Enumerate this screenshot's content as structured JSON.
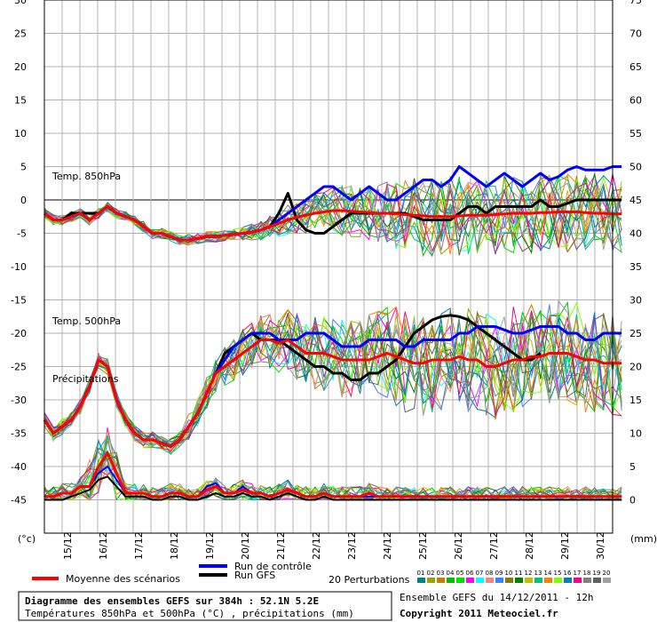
{
  "chart_data": {
    "type": "line",
    "title": "Diagramme des ensembles GEFS sur 384h : 52.1N 5.2E",
    "subtitle": "Températures 850hPa et 500hPa (°C) , précipitations (mm)",
    "ensemble_info": "Ensemble GEFS du 14/12/2011 - 12h",
    "copyright": "Copyright 2011 Meteociel.fr",
    "ylabel_left": "(°c)",
    "ylabel_right": "(mm)",
    "ylim_left": [
      -50,
      30
    ],
    "left_ticks": [
      "30",
      "25",
      "20",
      "15",
      "10",
      "5",
      "0",
      "-5",
      "-10",
      "-15",
      "-20",
      "-25",
      "-30",
      "-35",
      "-40",
      "-45"
    ],
    "right_ticks": [
      "75",
      "70",
      "65",
      "60",
      "55",
      "50",
      "45",
      "40",
      "35",
      "30",
      "25",
      "20",
      "15",
      "10",
      "5",
      "0"
    ],
    "x_ticks": [
      "15/12",
      "16/12",
      "17/12",
      "18/12",
      "19/12",
      "20/12",
      "21/12",
      "22/12",
      "23/12",
      "24/12",
      "25/12",
      "26/12",
      "27/12",
      "28/12",
      "29/12",
      "30/12"
    ],
    "annotations": {
      "t850": "Temp. 850hPa",
      "t500": "Temp. 500hPa",
      "precip": "Précipitations"
    },
    "legend": {
      "mean": "Moyenne des scénarios",
      "control": "Run de contrôle",
      "gfs": "Run GFS",
      "perturbations": "20 Perturbations",
      "perturbation_ids": [
        "01",
        "02",
        "03",
        "04",
        "05",
        "06",
        "07",
        "08",
        "09",
        "10",
        "11",
        "12",
        "13",
        "14",
        "15",
        "16",
        "17",
        "18",
        "19",
        "20"
      ]
    },
    "colors": {
      "mean": "#ff0000",
      "control": "#0000ff",
      "gfs": "#000000",
      "perturbations": [
        "#008080",
        "#a0a000",
        "#c08000",
        "#00c000",
        "#00e000",
        "#ff00ff",
        "#00ffff",
        "#ff8080",
        "#4080ff",
        "#808000",
        "#008000",
        "#c0c000",
        "#00c080",
        "#ff8000",
        "#80ff00",
        "#0080c0",
        "#ff0080",
        "#808080",
        "#606060",
        "#a0a0a0"
      ]
    },
    "series": [
      {
        "name": "T850 Moyenne",
        "values": [
          -2,
          -3,
          -3,
          -2.5,
          -2,
          -3,
          -2,
          -1,
          -2,
          -2.5,
          -3,
          -4,
          -5,
          -5,
          -5.5,
          -6,
          -6,
          -5.8,
          -5.5,
          -5.5,
          -5.3,
          -5.2,
          -5,
          -4.8,
          -4.5,
          -4,
          -3.5,
          -3,
          -2.6,
          -2.3,
          -2,
          -1.8,
          -1.6,
          -1.6,
          -1.7,
          -1.8,
          -1.9,
          -2,
          -2,
          -2.1,
          -2.2,
          -2.3,
          -2.4,
          -2.5,
          -2.5,
          -2.5,
          -2.4,
          -2.3,
          -2.3,
          -2.3,
          -2.2,
          -2.1,
          -2,
          -2,
          -2,
          -1.9,
          -1.9,
          -1.8,
          -1.8,
          -1.8,
          -1.9,
          -2,
          -2,
          -2.1,
          -2.1
        ]
      },
      {
        "name": "T850 Contrôle",
        "values": [
          -2,
          -3,
          -3,
          -2.5,
          -2,
          -3,
          -2,
          -1,
          -2,
          -2.5,
          -3,
          -4,
          -5,
          -5,
          -5.5,
          -6,
          -6,
          -5.8,
          -5.5,
          -5.5,
          -5.3,
          -5.2,
          -5,
          -4.8,
          -4.5,
          -4,
          -3,
          -2,
          -1,
          0,
          1,
          2,
          2,
          1,
          0,
          1,
          2,
          1,
          0,
          0,
          1,
          2,
          3,
          3,
          2,
          3,
          5,
          4,
          3,
          2,
          3,
          4,
          3,
          2,
          3,
          4,
          3,
          3.5,
          4.5,
          5,
          4.5,
          4.5,
          4.5,
          5,
          5
        ]
      },
      {
        "name": "T850 GFS",
        "values": [
          -2,
          -3,
          -3,
          -2,
          -2,
          -2,
          -2,
          -1,
          -2,
          -2.5,
          -3,
          -4,
          -5,
          -5,
          -5.5,
          -6,
          -6,
          -5.8,
          -5.5,
          -5.5,
          -5.3,
          -5.2,
          -5,
          -4.8,
          -4.5,
          -4,
          -2,
          1,
          -3,
          -4.5,
          -5,
          -5,
          -4,
          -3,
          -2,
          -2,
          -2,
          -2,
          -2,
          -2,
          -2,
          -2.5,
          -3,
          -3,
          -3,
          -3,
          -2,
          -1,
          -1,
          -2,
          -1,
          -1,
          -1,
          -1,
          -1,
          0,
          -1,
          -1,
          -0.5,
          0,
          0,
          0,
          0,
          0,
          0
        ]
      },
      {
        "name": "T500 Moyenne",
        "values": [
          -33,
          -35,
          -34,
          -33,
          -31,
          -28,
          -24,
          -25,
          -30,
          -33,
          -35,
          -36,
          -36,
          -36.5,
          -37,
          -36,
          -34,
          -32,
          -29,
          -26,
          -25,
          -24,
          -23,
          -22,
          -21,
          -21,
          -21.5,
          -21,
          -22,
          -23,
          -23,
          -23,
          -23.5,
          -24,
          -24,
          -24,
          -24,
          -23.5,
          -23,
          -23.5,
          -24,
          -24.5,
          -24.5,
          -24,
          -24,
          -24,
          -23.5,
          -24,
          -24,
          -25,
          -25,
          -24.5,
          -24,
          -24,
          -23.5,
          -23.5,
          -23,
          -23,
          -23,
          -23.5,
          -24,
          -24,
          -24.5,
          -24.5,
          -24.5
        ]
      },
      {
        "name": "T500 Contrôle",
        "values": [
          -33,
          -35,
          -34,
          -33,
          -31,
          -28,
          -24,
          -25,
          -30,
          -33,
          -35,
          -36,
          -36,
          -36.5,
          -37,
          -36,
          -34,
          -32,
          -29,
          -26,
          -24,
          -22,
          -21,
          -20,
          -20,
          -20,
          -21,
          -21,
          -21,
          -20,
          -20,
          -20,
          -21,
          -22,
          -22,
          -22,
          -21,
          -21,
          -21,
          -21,
          -22,
          -22,
          -21,
          -21,
          -21,
          -21,
          -20,
          -20,
          -19,
          -19,
          -19,
          -19.5,
          -20,
          -20,
          -19.5,
          -19,
          -19,
          -19,
          -20,
          -20,
          -21,
          -21,
          -20,
          -20,
          -20
        ]
      },
      {
        "name": "T500 GFS",
        "values": [
          -33,
          -35,
          -34,
          -33,
          -31,
          -28,
          -24,
          -25,
          -30,
          -33,
          -35,
          -36,
          -36,
          -36.5,
          -37,
          -36,
          -34,
          -32,
          -29,
          -26,
          -23,
          -22,
          -21,
          -20,
          -21,
          -21,
          -21,
          -22,
          -23,
          -24,
          -25,
          -25,
          -26,
          -26,
          -27,
          -27,
          -26,
          -26,
          -25,
          -24,
          -22,
          -20,
          -19,
          -18,
          -17.5,
          -17.3,
          -17.5,
          -18,
          -19,
          -20,
          -21,
          -22,
          -23,
          -24,
          -24,
          -23
        ]
      },
      {
        "name": "Précipitations Moyenne (mm)",
        "values": [
          0.5,
          0.5,
          1,
          1,
          2,
          2,
          5,
          7,
          4,
          1,
          1,
          1,
          0.5,
          0.5,
          1,
          1,
          0.5,
          0.5,
          1.5,
          2,
          1,
          1,
          1.5,
          1,
          1,
          0.5,
          1,
          1.5,
          1,
          0.5,
          0.5,
          1,
          0.5,
          0.5,
          0.5,
          0.5,
          1,
          0.5,
          0.5,
          0.5,
          0.5,
          0.5,
          0.5,
          0.5,
          0.5,
          0.5,
          0.5,
          0.5,
          0.5,
          0.5,
          0.5,
          0.5,
          0.5,
          0.5,
          0.5,
          0.5,
          0.5,
          0.5,
          0.5,
          0.5,
          0.5,
          0.5,
          0.5,
          0.5,
          0.5
        ]
      },
      {
        "name": "Précipitations Contrôle (mm)",
        "values": [
          0.5,
          0.5,
          1,
          1,
          2,
          2,
          4,
          5,
          3,
          1,
          1,
          1,
          0.5,
          0.5,
          1,
          1,
          0.5,
          0.5,
          2,
          2.5,
          1,
          1,
          2,
          1,
          1,
          0.5,
          1,
          1.5,
          1,
          0.5,
          0.5,
          1,
          0.5,
          0.5,
          0.5,
          0.5,
          0.5,
          0.5,
          0.5,
          0.5,
          0.5,
          0.5,
          0.5,
          0.5,
          0.5,
          0.5,
          0.5,
          0.5,
          0.5,
          0.5,
          0.5,
          0.5,
          0.5,
          0.5,
          0.5,
          0.5,
          0.5,
          0.5,
          0.5,
          0.5,
          0.5,
          0.5,
          0.5,
          0.5,
          0.5
        ]
      },
      {
        "name": "Précipitations GFS (mm)",
        "values": [
          0,
          0,
          0,
          0.5,
          1,
          1.5,
          3,
          3.5,
          2,
          0.5,
          0.5,
          0.5,
          0,
          0,
          0.5,
          0.5,
          0,
          0,
          0.5,
          1,
          0.5,
          0.5,
          1,
          0.5,
          0.5,
          0,
          0.5,
          1,
          0.5,
          0,
          0,
          0.5,
          0,
          0,
          0,
          0,
          0,
          0,
          0,
          0,
          0,
          0,
          0,
          0,
          0,
          0,
          0,
          0,
          0,
          0,
          0,
          0,
          0,
          0,
          0,
          0,
          0,
          0,
          0,
          0,
          0,
          0,
          0,
          0,
          0
        ]
      }
    ]
  }
}
